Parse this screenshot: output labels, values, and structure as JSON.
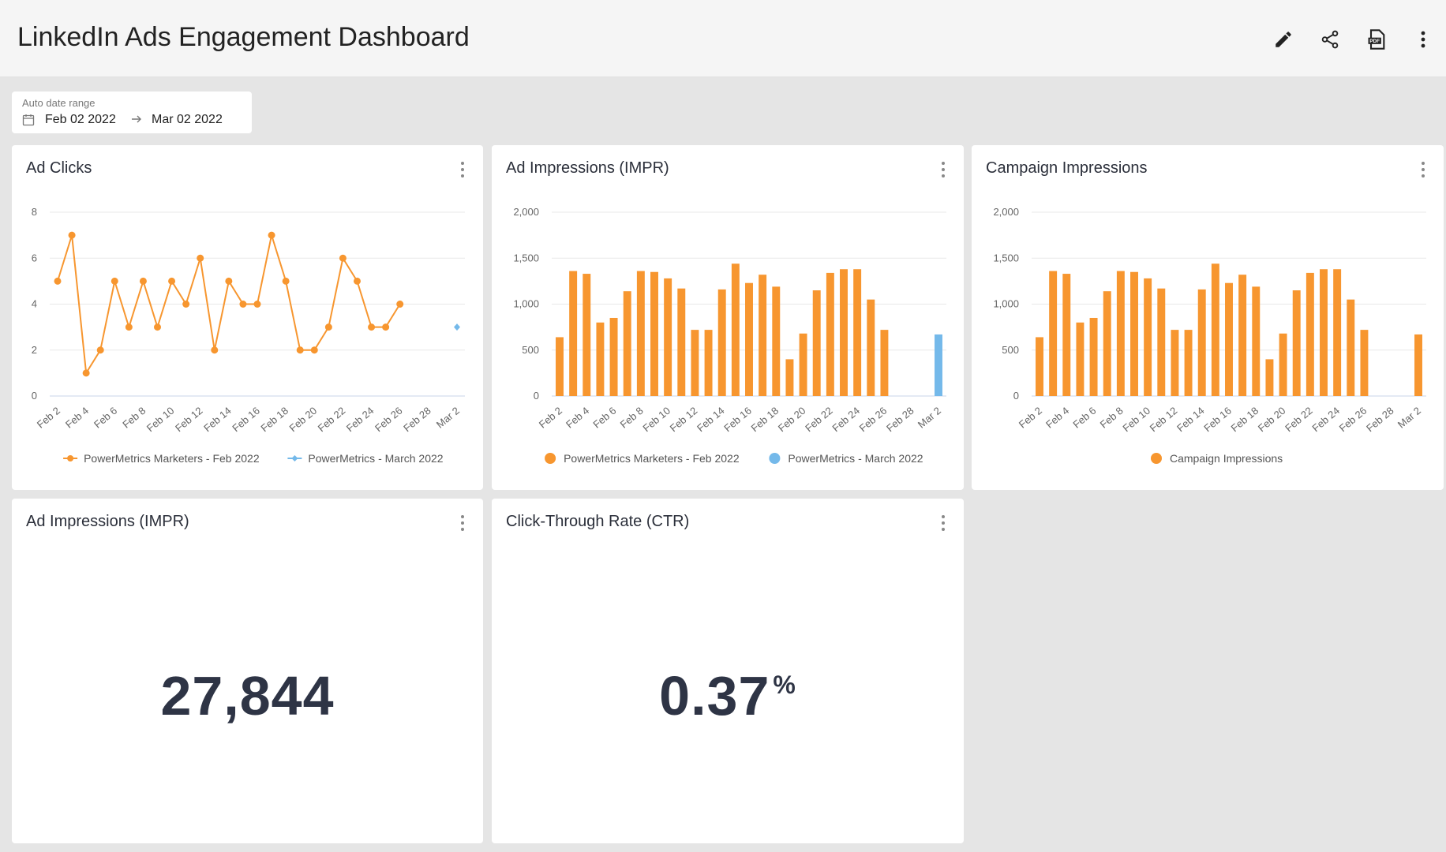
{
  "header": {
    "title": "LinkedIn Ads Engagement Dashboard",
    "icons": [
      "edit-icon",
      "share-icon",
      "pdf-icon",
      "more-vertical-icon"
    ]
  },
  "date_range": {
    "label": "Auto date range",
    "from": "Feb 02 2022",
    "to": "Mar 02 2022"
  },
  "cards": {
    "ad_clicks": {
      "title": "Ad Clicks",
      "chart_data": {
        "type": "line",
        "categories": [
          "Feb 2",
          "Feb 3",
          "Feb 4",
          "Feb 5",
          "Feb 6",
          "Feb 7",
          "Feb 8",
          "Feb 9",
          "Feb 10",
          "Feb 11",
          "Feb 12",
          "Feb 13",
          "Feb 14",
          "Feb 15",
          "Feb 16",
          "Feb 17",
          "Feb 18",
          "Feb 19",
          "Feb 20",
          "Feb 21",
          "Feb 22",
          "Feb 23",
          "Feb 24",
          "Feb 25",
          "Feb 26",
          "Feb 27",
          "Feb 28",
          "Mar 1",
          "Mar 2"
        ],
        "tick_labels": [
          "Feb 2",
          "Feb 4",
          "Feb 6",
          "Feb 8",
          "Feb 10",
          "Feb 12",
          "Feb 14",
          "Feb 16",
          "Feb 18",
          "Feb 20",
          "Feb 22",
          "Feb 24",
          "Feb 26",
          "Feb 28",
          "Mar 2"
        ],
        "series": [
          {
            "name": "PowerMetrics Marketers - Feb 2022",
            "color": "#f7962f",
            "values": [
              5,
              7,
              1,
              2,
              5,
              3,
              5,
              3,
              5,
              4,
              6,
              2,
              5,
              4,
              4,
              7,
              5,
              2,
              2,
              3,
              6,
              5,
              3,
              3,
              4,
              null,
              null,
              null,
              null
            ]
          },
          {
            "name": "PowerMetrics - March 2022",
            "color": "#74b9ea",
            "values": [
              null,
              null,
              null,
              null,
              null,
              null,
              null,
              null,
              null,
              null,
              null,
              null,
              null,
              null,
              null,
              null,
              null,
              null,
              null,
              null,
              null,
              null,
              null,
              null,
              null,
              null,
              null,
              null,
              3
            ]
          }
        ],
        "ylim": [
          0,
          8
        ],
        "yticks": [
          "0",
          "2",
          "4",
          "6",
          "8"
        ],
        "grid": true,
        "legend_position": "bottom"
      }
    },
    "ad_impressions_chart": {
      "title": "Ad Impressions (IMPR)",
      "chart_data": {
        "type": "bar",
        "categories": [
          "Feb 2",
          "Feb 3",
          "Feb 4",
          "Feb 5",
          "Feb 6",
          "Feb 7",
          "Feb 8",
          "Feb 9",
          "Feb 10",
          "Feb 11",
          "Feb 12",
          "Feb 13",
          "Feb 14",
          "Feb 15",
          "Feb 16",
          "Feb 17",
          "Feb 18",
          "Feb 19",
          "Feb 20",
          "Feb 21",
          "Feb 22",
          "Feb 23",
          "Feb 24",
          "Feb 25",
          "Feb 26",
          "Feb 27",
          "Feb 28",
          "Mar 1",
          "Mar 2"
        ],
        "tick_labels": [
          "Feb 2",
          "Feb 4",
          "Feb 6",
          "Feb 8",
          "Feb 10",
          "Feb 12",
          "Feb 14",
          "Feb 16",
          "Feb 18",
          "Feb 20",
          "Feb 22",
          "Feb 24",
          "Feb 26",
          "Feb 28",
          "Mar 2"
        ],
        "series": [
          {
            "name": "PowerMetrics Marketers - Feb 2022",
            "color": "#f7962f",
            "values": [
              640,
              1360,
              1330,
              800,
              850,
              1140,
              1360,
              1350,
              1280,
              1170,
              720,
              720,
              1160,
              1440,
              1230,
              1320,
              1190,
              400,
              680,
              1150,
              1340,
              1380,
              1380,
              1050,
              720,
              0,
              0,
              0,
              0
            ]
          },
          {
            "name": "PowerMetrics - March 2022",
            "color": "#74b9ea",
            "values": [
              0,
              0,
              0,
              0,
              0,
              0,
              0,
              0,
              0,
              0,
              0,
              0,
              0,
              0,
              0,
              0,
              0,
              0,
              0,
              0,
              0,
              0,
              0,
              0,
              0,
              0,
              0,
              0,
              670
            ]
          }
        ],
        "ylim": [
          0,
          2000
        ],
        "yticks": [
          "0",
          "500",
          "1,000",
          "1,500",
          "2,000"
        ],
        "grid": true,
        "legend_position": "bottom"
      }
    },
    "campaign_impressions": {
      "title": "Campaign Impressions",
      "chart_data": {
        "type": "bar",
        "categories": [
          "Feb 2",
          "Feb 3",
          "Feb 4",
          "Feb 5",
          "Feb 6",
          "Feb 7",
          "Feb 8",
          "Feb 9",
          "Feb 10",
          "Feb 11",
          "Feb 12",
          "Feb 13",
          "Feb 14",
          "Feb 15",
          "Feb 16",
          "Feb 17",
          "Feb 18",
          "Feb 19",
          "Feb 20",
          "Feb 21",
          "Feb 22",
          "Feb 23",
          "Feb 24",
          "Feb 25",
          "Feb 26",
          "Feb 27",
          "Feb 28",
          "Mar 1",
          "Mar 2"
        ],
        "tick_labels": [
          "Feb 2",
          "Feb 4",
          "Feb 6",
          "Feb 8",
          "Feb 10",
          "Feb 12",
          "Feb 14",
          "Feb 16",
          "Feb 18",
          "Feb 20",
          "Feb 22",
          "Feb 24",
          "Feb 26",
          "Feb 28",
          "Mar 2"
        ],
        "series": [
          {
            "name": "Campaign Impressions",
            "color": "#f7962f",
            "values": [
              640,
              1360,
              1330,
              800,
              850,
              1140,
              1360,
              1350,
              1280,
              1170,
              720,
              720,
              1160,
              1440,
              1230,
              1320,
              1190,
              400,
              680,
              1150,
              1340,
              1380,
              1380,
              1050,
              720,
              0,
              0,
              0,
              670
            ]
          }
        ],
        "ylim": [
          0,
          2000
        ],
        "yticks": [
          "0",
          "500",
          "1,000",
          "1,500",
          "2,000"
        ],
        "grid": true,
        "legend_position": "bottom"
      }
    },
    "ad_impressions_kpi": {
      "title": "Ad Impressions (IMPR)",
      "value": "27,844"
    },
    "ctr_kpi": {
      "title": "Click-Through Rate (CTR)",
      "value": "0.37",
      "unit": "%"
    }
  }
}
